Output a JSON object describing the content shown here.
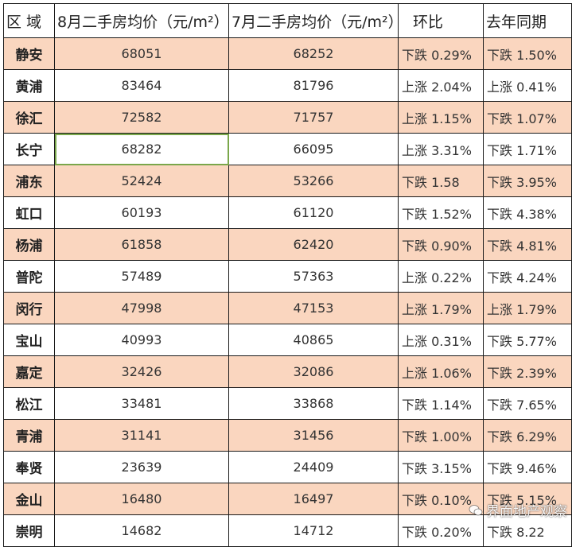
{
  "table": {
    "headers": [
      "区 域",
      "8月二手房均价（元/m²）",
      "7月二手房均价（元/m²）",
      "环比",
      "去年同期"
    ],
    "rows": [
      {
        "district": "静安",
        "aug": "68051",
        "jul": "68252",
        "mom": "下跌 0.29%",
        "yoy": "下跌 1.50%",
        "shaded": true
      },
      {
        "district": "黄浦",
        "aug": "83464",
        "jul": "81796",
        "mom": "上涨 2.04%",
        "yoy": "上涨 0.41%",
        "shaded": false
      },
      {
        "district": "徐汇",
        "aug": "72582",
        "jul": "71757",
        "mom": "上涨 1.15%",
        "yoy": "下跌 1.07%",
        "shaded": true
      },
      {
        "district": "长宁",
        "aug": "68282",
        "jul": "66095",
        "mom": "上涨 3.31%",
        "yoy": "下跌 1.71%",
        "shaded": false,
        "selected": true
      },
      {
        "district": "浦东",
        "aug": "52424",
        "jul": "53266",
        "mom": "下跌 1.58",
        "yoy": "下跌 3.95%",
        "shaded": true
      },
      {
        "district": "虹口",
        "aug": "60193",
        "jul": "61120",
        "mom": "下跌 1.52%",
        "yoy": "下跌 4.38%",
        "shaded": false
      },
      {
        "district": "杨浦",
        "aug": "61858",
        "jul": "62420",
        "mom": "下跌 0.90%",
        "yoy": "下跌 4.81%",
        "shaded": true
      },
      {
        "district": "普陀",
        "aug": "57489",
        "jul": "57363",
        "mom": "上涨 0.22%",
        "yoy": "下跌 4.24%",
        "shaded": false
      },
      {
        "district": "闵行",
        "aug": "47998",
        "jul": "47153",
        "mom": "上涨 1.79%",
        "yoy": "上涨 1.79%",
        "shaded": true
      },
      {
        "district": "宝山",
        "aug": "40993",
        "jul": "40865",
        "mom": "上涨 0.31%",
        "yoy": "下跌 5.77%",
        "shaded": false
      },
      {
        "district": "嘉定",
        "aug": "32426",
        "jul": "32086",
        "mom": "上涨 1.06%",
        "yoy": "下跌 2.39%",
        "shaded": true
      },
      {
        "district": "松江",
        "aug": "33481",
        "jul": "33868",
        "mom": "下跌 1.14%",
        "yoy": "下跌 7.65%",
        "shaded": false
      },
      {
        "district": "青浦",
        "aug": "31141",
        "jul": "31456",
        "mom": "下跌 1.00%",
        "yoy": "下跌 6.29%",
        "shaded": true
      },
      {
        "district": "奉贤",
        "aug": "23639",
        "jul": "24409",
        "mom": "下跌 3.15%",
        "yoy": "下跌 9.46%",
        "shaded": false
      },
      {
        "district": "金山",
        "aug": "16480",
        "jul": "16497",
        "mom": "下跌 0.10%",
        "yoy": "下跌 5.15%",
        "shaded": true
      },
      {
        "district": "崇明",
        "aug": "14682",
        "jul": "14712",
        "mom": "下跌 0.20%",
        "yoy": "下跌 8.22",
        "shaded": false
      }
    ]
  },
  "watermark": {
    "text": "界面地产观察",
    "icon": "wechat-icon"
  },
  "colors": {
    "row_shade": "#fad6bf",
    "selection_border": "#7aa74b",
    "grid": "#1a1a1a"
  }
}
